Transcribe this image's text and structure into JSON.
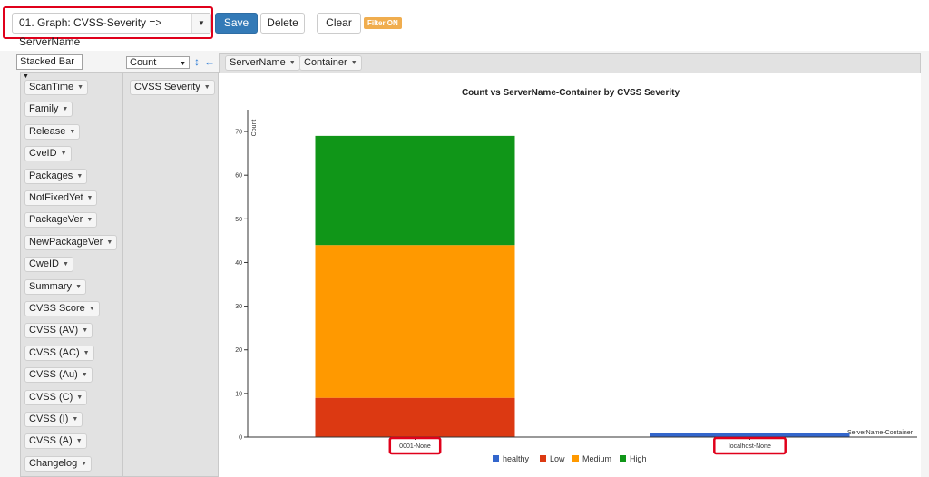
{
  "toolbar": {
    "view_name": "01. Graph: CVSS-Severity => ServerName",
    "save_label": "Save",
    "delete_label": "Delete",
    "clear_label": "Clear",
    "filter_badge": "Filter ON"
  },
  "pivot": {
    "renderer": "Stacked Bar",
    "aggregator": "Count",
    "col_attrs": [
      "ServerName",
      "Container"
    ],
    "row_attrs": [
      "CVSS Severity"
    ],
    "unused_attrs": [
      "ScanTime",
      "Family",
      "Release",
      "CveID",
      "Packages",
      "NotFixedYet",
      "PackageVer",
      "NewPackageVer",
      "CweID",
      "Summary",
      "CVSS Score",
      "CVSS (AV)",
      "CVSS (AC)",
      "CVSS (Au)",
      "CVSS (C)",
      "CVSS (I)",
      "CVSS (A)",
      "Changelog"
    ]
  },
  "colors": {
    "healthy": "#3366cc",
    "Low": "#dc3912",
    "Medium": "#ff9900",
    "High": "#109618",
    "highlight": "#e0001b",
    "primary": "#337ab7"
  },
  "chart_data": {
    "type": "bar",
    "stacked": true,
    "title": "Count vs ServerName-Container by CVSS Severity",
    "xlabel": "ServerName-Container",
    "ylabel": "Count",
    "categories": [
      "0001-None",
      "localhost-None"
    ],
    "series": [
      {
        "name": "healthy",
        "values": [
          0,
          1
        ]
      },
      {
        "name": "Low",
        "values": [
          9,
          0
        ]
      },
      {
        "name": "Medium",
        "values": [
          35,
          0
        ]
      },
      {
        "name": "High",
        "values": [
          25,
          0
        ]
      }
    ],
    "ylim": [
      0,
      75
    ],
    "yticks": [
      0,
      10,
      20,
      30,
      40,
      50,
      60,
      70
    ],
    "legend_position": "bottom",
    "highlighted_categories": [
      "0001-None",
      "localhost-None"
    ]
  }
}
